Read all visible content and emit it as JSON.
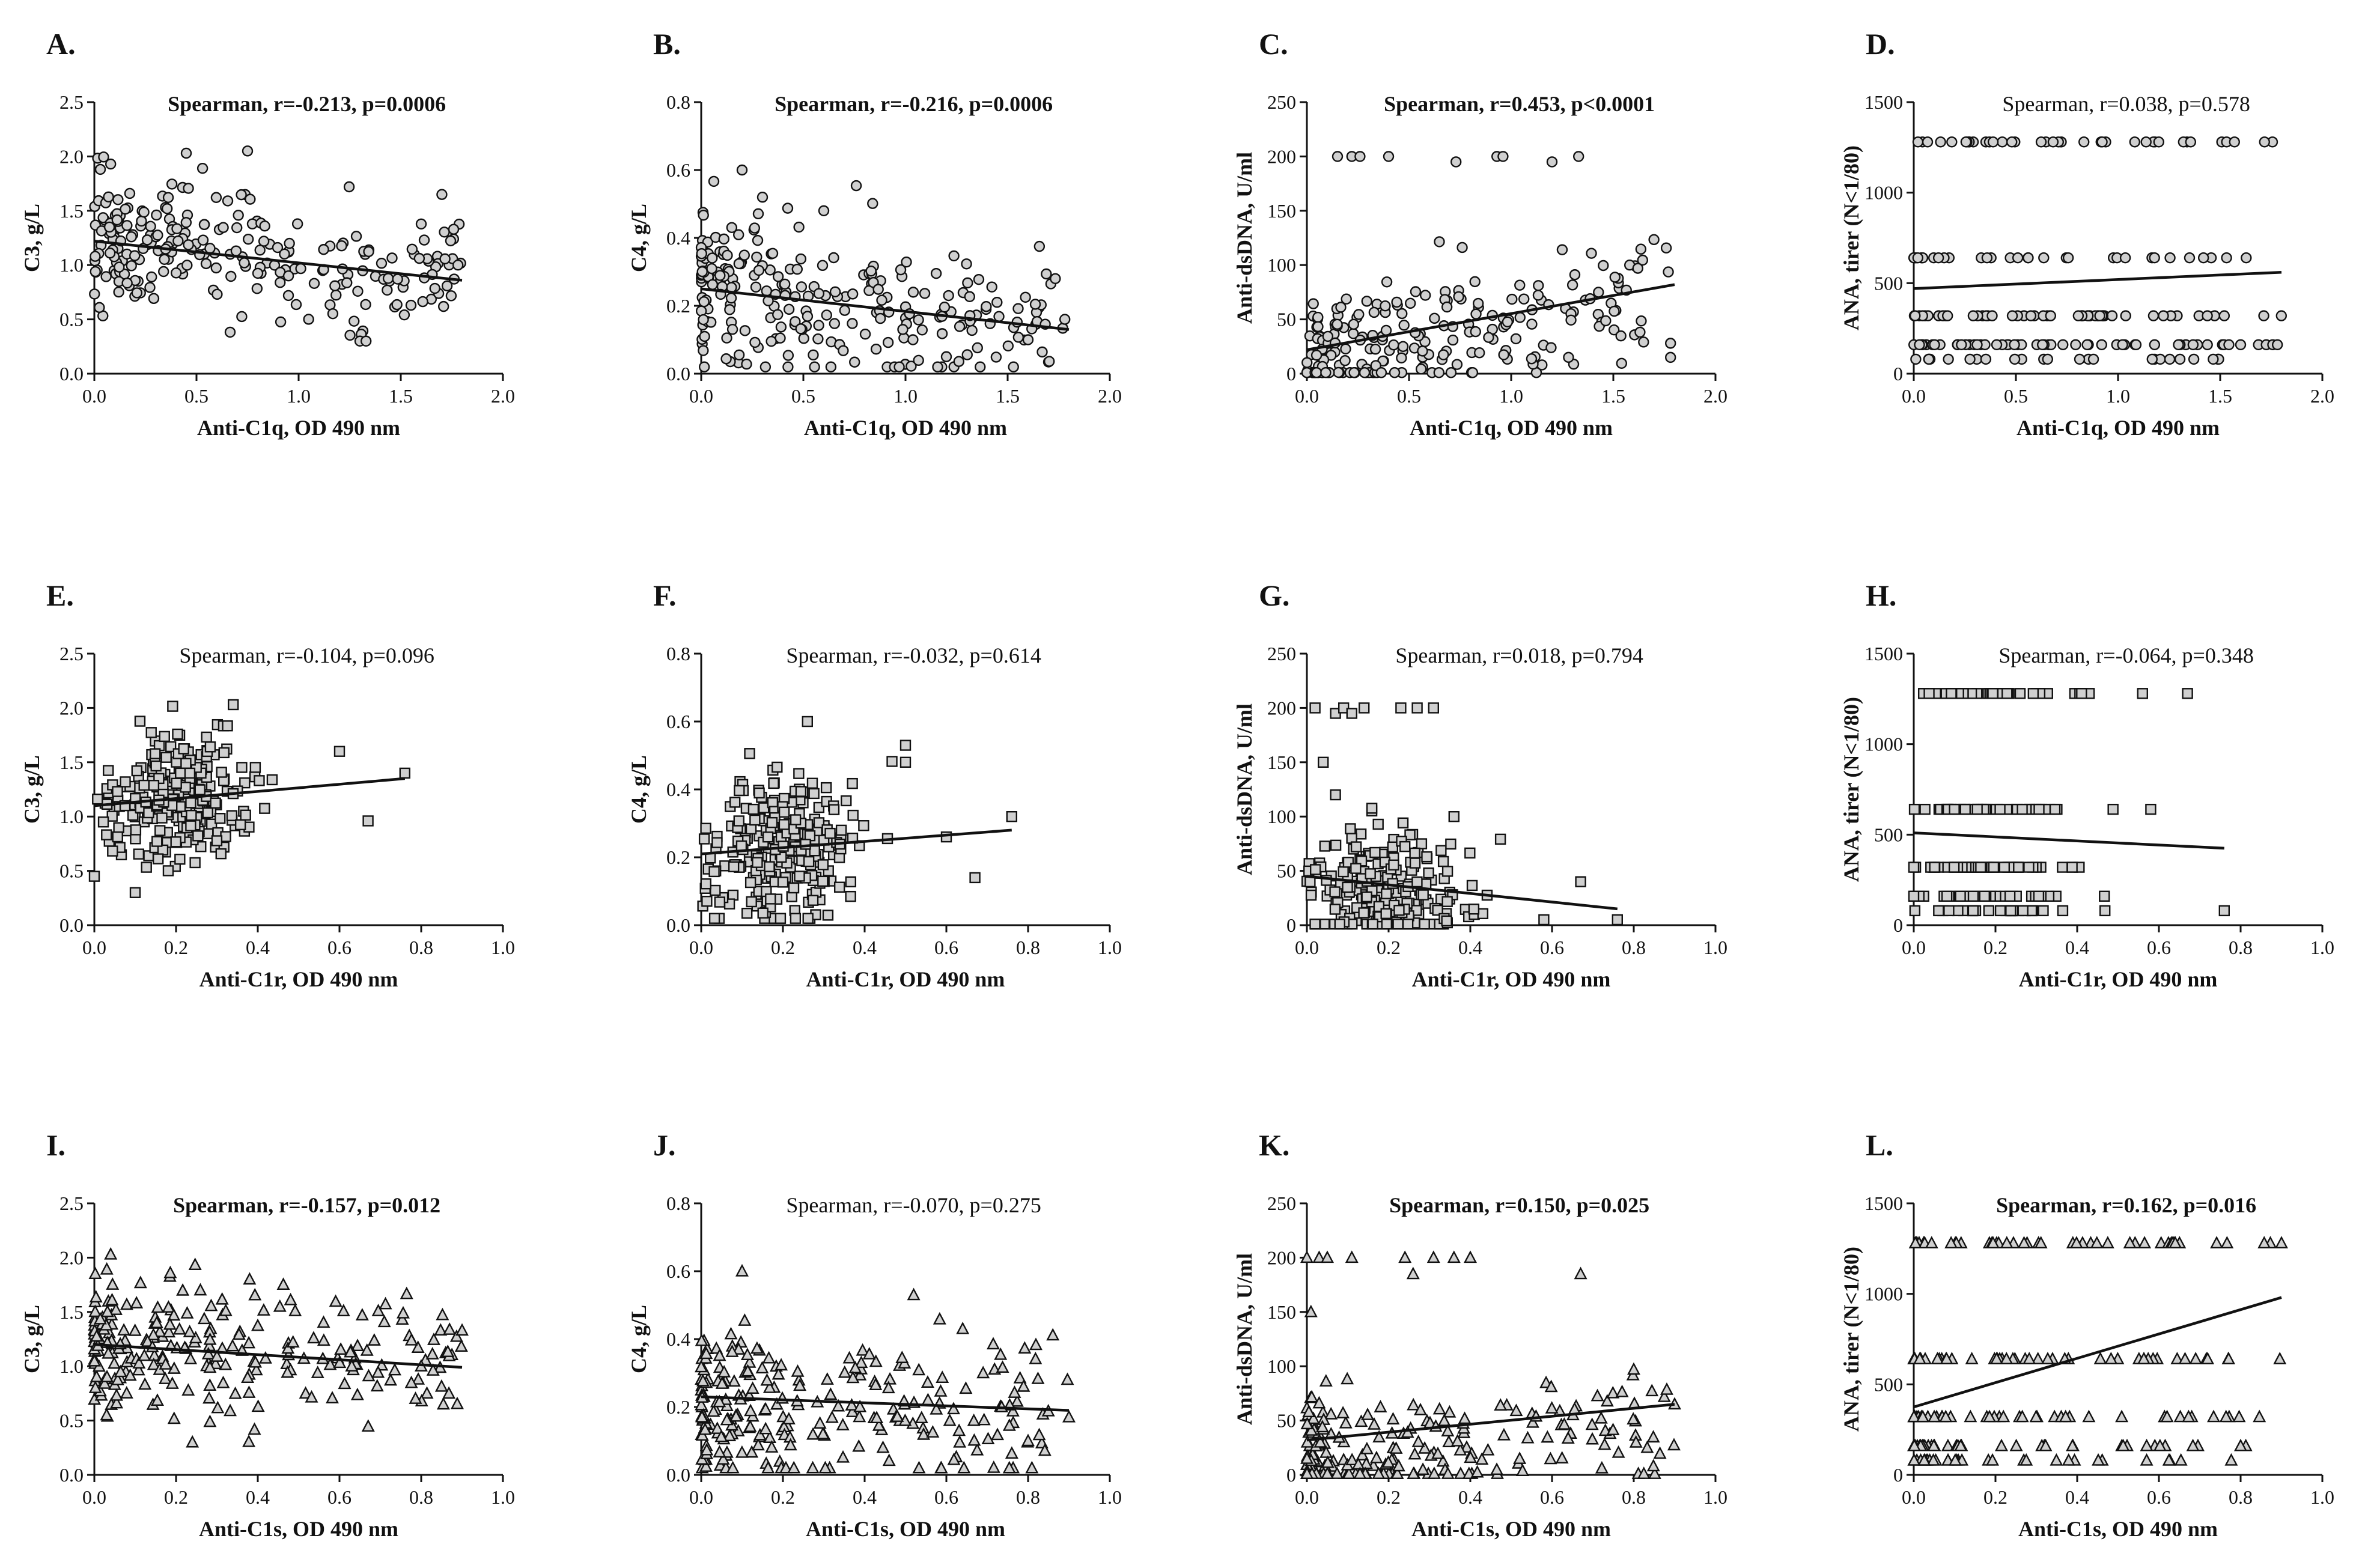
{
  "chart_data": [
    {
      "id": "A",
      "type": "scatter",
      "panel_label": "A.",
      "stat_text": "Spearman, r=-0.213, p=0.0006",
      "stat_bold": true,
      "xlabel": "Anti-C1q, OD 490 nm",
      "ylabel": "C3, g/L",
      "xlim": [
        0,
        2.0
      ],
      "ylim": [
        0,
        2.5
      ],
      "xticks": [
        "0.0",
        "0.5",
        "1.0",
        "1.5",
        "2.0"
      ],
      "yticks": [
        "0.0",
        "0.5",
        "1.0",
        "1.5",
        "2.0",
        "2.5"
      ],
      "marker": "circle",
      "n_points": 250,
      "x_max": 1.8,
      "x_skew": 1.6,
      "y_mean": 1.15,
      "y_sd": 0.28,
      "y_clip": [
        0.3,
        2.05
      ],
      "fit": {
        "x0": 0,
        "y0": 1.22,
        "x1": 1.8,
        "y1": 0.86
      },
      "highlights": [
        [
          0.45,
          2.03
        ],
        [
          0.75,
          2.05
        ],
        [
          1.3,
          0.3
        ],
        [
          1.33,
          0.3
        ],
        [
          1.78,
          1.0
        ],
        [
          1.55,
          0.63
        ],
        [
          0.08,
          1.93
        ]
      ]
    },
    {
      "id": "B",
      "type": "scatter",
      "panel_label": "B.",
      "stat_text": "Spearman, r=-0.216, p=0.0006",
      "stat_bold": true,
      "xlabel": "Anti-C1q, OD 490 nm",
      "ylabel": "C4, g/L",
      "xlim": [
        0,
        2.0
      ],
      "ylim": [
        0,
        0.8
      ],
      "xticks": [
        "0.0",
        "0.5",
        "1.0",
        "1.5",
        "2.0"
      ],
      "yticks": [
        "0.0",
        "0.2",
        "0.4",
        "0.6",
        "0.8"
      ],
      "marker": "circle",
      "n_points": 250,
      "x_max": 1.8,
      "x_skew": 1.6,
      "y_mean": 0.22,
      "y_sd": 0.11,
      "y_clip": [
        0.02,
        0.6
      ],
      "fit": {
        "x0": 0,
        "y0": 0.25,
        "x1": 1.8,
        "y1": 0.13
      },
      "highlights": [
        [
          0.2,
          0.6
        ],
        [
          0.3,
          0.52
        ],
        [
          0.6,
          0.48
        ],
        [
          1.78,
          0.16
        ],
        [
          1.6,
          0.1
        ],
        [
          1.2,
          0.05
        ]
      ]
    },
    {
      "id": "C",
      "type": "scatter",
      "panel_label": "C.",
      "stat_text": "Spearman, r=0.453, p<0.0001",
      "stat_bold": true,
      "xlabel": "Anti-C1q, OD 490 nm",
      "ylabel": "Anti-dsDNA, U/ml",
      "xlim": [
        0,
        2.0
      ],
      "ylim": [
        0,
        250
      ],
      "xticks": [
        "0.0",
        "0.5",
        "1.0",
        "1.5",
        "2.0"
      ],
      "yticks": [
        "0",
        "50",
        "100",
        "150",
        "200",
        "250"
      ],
      "marker": "circle",
      "n_points": 220,
      "x_max": 1.8,
      "x_skew": 1.7,
      "y_mean": 28,
      "y_sd": 30,
      "y_clip": [
        1,
        170
      ],
      "fit": {
        "x0": 0,
        "y0": 22,
        "x1": 1.8,
        "y1": 82
      },
      "highlights": [
        [
          0.15,
          200
        ],
        [
          0.22,
          200
        ],
        [
          0.26,
          200
        ],
        [
          0.4,
          200
        ],
        [
          0.73,
          195
        ],
        [
          0.93,
          200
        ],
        [
          0.96,
          200
        ],
        [
          1.2,
          195
        ],
        [
          1.33,
          200
        ],
        [
          1.58,
          100
        ],
        [
          1.62,
          97
        ],
        [
          1.78,
          28
        ],
        [
          1.78,
          15
        ]
      ]
    },
    {
      "id": "D",
      "type": "scatter",
      "panel_label": "D.",
      "stat_text": "Spearman, r=0.038, p=0.578",
      "stat_bold": false,
      "xlabel": "Anti-C1q, OD 490 nm",
      "ylabel": "ANA, tirer (N<1/80)",
      "xlim": [
        0,
        2.0
      ],
      "ylim": [
        0,
        1500
      ],
      "xticks": [
        "0.0",
        "0.5",
        "1.0",
        "1.5",
        "2.0"
      ],
      "yticks": [
        "0",
        "500",
        "1000",
        "1500"
      ],
      "marker": "circle",
      "n_points": 200,
      "x_max": 1.8,
      "x_skew": 1.6,
      "y_levels": [
        80,
        160,
        320,
        640,
        1280
      ],
      "fit": {
        "x0": 0,
        "y0": 470,
        "x1": 1.8,
        "y1": 560
      },
      "highlights": [
        [
          1.78,
          160
        ],
        [
          1.6,
          160
        ],
        [
          1.57,
          1280
        ],
        [
          1.52,
          320
        ]
      ]
    },
    {
      "id": "E",
      "type": "scatter",
      "panel_label": "E.",
      "stat_text": "Spearman, r=-0.104, p=0.096",
      "stat_bold": false,
      "xlabel": "Anti-C1r, OD 490 nm",
      "ylabel": "C3, g/L",
      "xlim": [
        0,
        1.0
      ],
      "ylim": [
        0,
        2.5
      ],
      "xticks": [
        "0.0",
        "0.2",
        "0.4",
        "0.6",
        "0.8",
        "1.0"
      ],
      "yticks": [
        "0.0",
        "0.5",
        "1.0",
        "1.5",
        "2.0",
        "2.5"
      ],
      "marker": "square",
      "n_points": 250,
      "x_max": 0.76,
      "x_center": 0.2,
      "x_sd": 0.09,
      "y_mean": 1.15,
      "y_sd": 0.3,
      "y_clip": [
        0.3,
        2.05
      ],
      "fit": {
        "x0": 0,
        "y0": 1.1,
        "x1": 0.76,
        "y1": 1.35
      },
      "highlights": [
        [
          0.76,
          1.4
        ],
        [
          0.67,
          0.96
        ],
        [
          0.6,
          1.6
        ],
        [
          0.0,
          0.45
        ],
        [
          0.1,
          0.3
        ],
        [
          0.34,
          2.03
        ]
      ]
    },
    {
      "id": "F",
      "type": "scatter",
      "panel_label": "F.",
      "stat_text": "Spearman, r=-0.032, p=0.614",
      "stat_bold": false,
      "xlabel": "Anti-C1r, OD 490 nm",
      "ylabel": "C4, g/L",
      "xlim": [
        0,
        1.0
      ],
      "ylim": [
        0,
        0.8
      ],
      "xticks": [
        "0.0",
        "0.2",
        "0.4",
        "0.6",
        "0.8",
        "1.0"
      ],
      "yticks": [
        "0.0",
        "0.2",
        "0.4",
        "0.6",
        "0.8"
      ],
      "marker": "square",
      "n_points": 250,
      "x_max": 0.76,
      "x_center": 0.2,
      "x_sd": 0.09,
      "y_mean": 0.22,
      "y_sd": 0.11,
      "y_clip": [
        0.02,
        0.6
      ],
      "fit": {
        "x0": 0,
        "y0": 0.21,
        "x1": 0.76,
        "y1": 0.28
      },
      "highlights": [
        [
          0.26,
          0.6
        ],
        [
          0.5,
          0.53
        ],
        [
          0.5,
          0.48
        ],
        [
          0.76,
          0.32
        ],
        [
          0.67,
          0.14
        ],
        [
          0.6,
          0.26
        ]
      ]
    },
    {
      "id": "G",
      "type": "scatter",
      "panel_label": "G.",
      "stat_text": "Spearman, r=0.018, p=0.794",
      "stat_bold": false,
      "xlabel": "Anti-C1r, OD 490 nm",
      "ylabel": "Anti-dsDNA, U/ml",
      "xlim": [
        0,
        1.0
      ],
      "ylim": [
        0,
        250
      ],
      "xticks": [
        "0.0",
        "0.2",
        "0.4",
        "0.6",
        "0.8",
        "1.0"
      ],
      "yticks": [
        "0",
        "50",
        "100",
        "150",
        "200",
        "250"
      ],
      "marker": "square",
      "n_points": 220,
      "x_max": 0.76,
      "x_center": 0.2,
      "x_sd": 0.1,
      "y_mean": 30,
      "y_sd": 28,
      "y_clip": [
        1,
        120
      ],
      "fit": {
        "x0": 0,
        "y0": 45,
        "x1": 0.76,
        "y1": 15
      },
      "highlights": [
        [
          0.02,
          200
        ],
        [
          0.07,
          195
        ],
        [
          0.09,
          200
        ],
        [
          0.11,
          195
        ],
        [
          0.14,
          200
        ],
        [
          0.23,
          200
        ],
        [
          0.27,
          200
        ],
        [
          0.31,
          200
        ],
        [
          0.04,
          150
        ],
        [
          0.07,
          120
        ],
        [
          0.36,
          100
        ],
        [
          0.67,
          40
        ],
        [
          0.76,
          5
        ],
        [
          0.58,
          5
        ]
      ]
    },
    {
      "id": "H",
      "type": "scatter",
      "panel_label": "H.",
      "stat_text": "Spearman, r=-0.064, p=0.348",
      "stat_bold": false,
      "xlabel": "Anti-C1r, OD 490 nm",
      "ylabel": "ANA, tirer (N<1/80)",
      "xlim": [
        0,
        1.0
      ],
      "ylim": [
        0,
        1500
      ],
      "xticks": [
        "0.0",
        "0.2",
        "0.4",
        "0.6",
        "0.8",
        "1.0"
      ],
      "yticks": [
        "0",
        "500",
        "1000",
        "1500"
      ],
      "marker": "square",
      "n_points": 200,
      "x_max": 0.76,
      "x_center": 0.2,
      "x_sd": 0.1,
      "y_levels": [
        80,
        160,
        320,
        640,
        1280
      ],
      "fit": {
        "x0": 0,
        "y0": 510,
        "x1": 0.76,
        "y1": 425
      },
      "highlights": [
        [
          0.76,
          80
        ],
        [
          0.67,
          1280
        ],
        [
          0.56,
          1280
        ],
        [
          0.58,
          640
        ],
        [
          0.0,
          320
        ],
        [
          0.0,
          160
        ]
      ]
    },
    {
      "id": "I",
      "type": "scatter",
      "panel_label": "I.",
      "stat_text": "Spearman, r=-0.157, p=0.012",
      "stat_bold": true,
      "xlabel": "Anti-C1s, OD 490 nm",
      "ylabel": "C3, g/L",
      "xlim": [
        0,
        1.0
      ],
      "ylim": [
        0,
        2.5
      ],
      "xticks": [
        "0.0",
        "0.2",
        "0.4",
        "0.6",
        "0.8",
        "1.0"
      ],
      "yticks": [
        "0.0",
        "0.5",
        "1.0",
        "1.5",
        "2.0",
        "2.5"
      ],
      "marker": "triangle",
      "n_points": 250,
      "x_max": 0.9,
      "x_skew": 2.2,
      "y_mean": 1.15,
      "y_sd": 0.3,
      "y_clip": [
        0.3,
        2.05
      ],
      "fit": {
        "x0": 0,
        "y0": 1.2,
        "x1": 0.9,
        "y1": 0.99
      },
      "highlights": [
        [
          0.04,
          2.03
        ],
        [
          0.24,
          0.3
        ],
        [
          0.9,
          1.33
        ],
        [
          0.8,
          1.0
        ],
        [
          0.63,
          1.0
        ],
        [
          0.03,
          0.55
        ],
        [
          0.38,
          1.8
        ]
      ]
    },
    {
      "id": "J",
      "type": "scatter",
      "panel_label": "J.",
      "stat_text": "Spearman, r=-0.070, p=0.275",
      "stat_bold": false,
      "xlabel": "Anti-C1s, OD 490 nm",
      "ylabel": "C4, g/L",
      "xlim": [
        0,
        1.0
      ],
      "ylim": [
        0,
        0.8
      ],
      "xticks": [
        "0.0",
        "0.2",
        "0.4",
        "0.6",
        "0.8",
        "1.0"
      ],
      "yticks": [
        "0.0",
        "0.2",
        "0.4",
        "0.6",
        "0.8"
      ],
      "marker": "triangle",
      "n_points": 250,
      "x_max": 0.9,
      "x_skew": 2.2,
      "y_mean": 0.2,
      "y_sd": 0.11,
      "y_clip": [
        0.02,
        0.6
      ],
      "fit": {
        "x0": 0,
        "y0": 0.23,
        "x1": 0.9,
        "y1": 0.19
      },
      "highlights": [
        [
          0.1,
          0.6
        ],
        [
          0.52,
          0.53
        ],
        [
          0.9,
          0.17
        ],
        [
          0.8,
          0.1
        ],
        [
          0.64,
          0.43
        ],
        [
          0.69,
          0.3
        ]
      ]
    },
    {
      "id": "K",
      "type": "scatter",
      "panel_label": "K.",
      "stat_text": "Spearman, r=0.150, p=0.025",
      "stat_bold": true,
      "xlabel": "Anti-C1s, OD 490 nm",
      "ylabel": "Anti-dsDNA, U/ml",
      "xlim": [
        0,
        1.0
      ],
      "ylim": [
        0,
        250
      ],
      "xticks": [
        "0.0",
        "0.2",
        "0.4",
        "0.6",
        "0.8",
        "1.0"
      ],
      "yticks": [
        "0",
        "50",
        "100",
        "150",
        "200",
        "250"
      ],
      "marker": "triangle",
      "n_points": 220,
      "x_max": 0.9,
      "x_skew": 2.3,
      "y_mean": 25,
      "y_sd": 25,
      "y_clip": [
        1,
        130
      ],
      "fit": {
        "x0": 0,
        "y0": 32,
        "x1": 0.9,
        "y1": 65
      },
      "highlights": [
        [
          0.03,
          200
        ],
        [
          0.05,
          200
        ],
        [
          0.11,
          200
        ],
        [
          0.24,
          200
        ],
        [
          0.31,
          200
        ],
        [
          0.36,
          200
        ],
        [
          0.4,
          200
        ],
        [
          0.26,
          185
        ],
        [
          0.67,
          185
        ],
        [
          0.9,
          65
        ],
        [
          0.8,
          97
        ],
        [
          0.0,
          200
        ],
        [
          0.01,
          150
        ]
      ]
    },
    {
      "id": "L",
      "type": "scatter",
      "panel_label": "L.",
      "stat_text": "Spearman, r=0.162, p=0.016",
      "stat_bold": true,
      "xlabel": "Anti-C1s, OD 490 nm",
      "ylabel": "ANA, tirer (N<1/80)",
      "xlim": [
        0,
        1.0
      ],
      "ylim": [
        0,
        1500
      ],
      "xticks": [
        "0.0",
        "0.2",
        "0.4",
        "0.6",
        "0.8",
        "1.0"
      ],
      "yticks": [
        "0",
        "500",
        "1000",
        "1500"
      ],
      "marker": "triangle",
      "n_points": 200,
      "x_max": 0.9,
      "x_skew": 2.2,
      "y_levels": [
        80,
        160,
        320,
        640,
        1280
      ],
      "fit": {
        "x0": 0,
        "y0": 375,
        "x1": 0.9,
        "y1": 980
      },
      "highlights": [
        [
          0.9,
          1280
        ],
        [
          0.8,
          160
        ],
        [
          0.69,
          640
        ],
        [
          0.62,
          320
        ],
        [
          0.57,
          160
        ],
        [
          0.57,
          80
        ],
        [
          0.64,
          1280
        ]
      ]
    }
  ]
}
